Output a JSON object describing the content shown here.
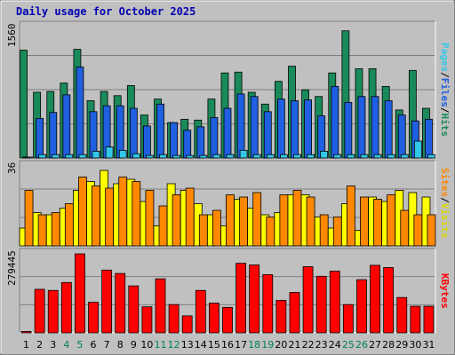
{
  "title": "Daily usage for October 2025",
  "chart_data": [
    {
      "type": "bar",
      "panel": "pages-files-hits",
      "max_label": "1560",
      "ylim": [
        0,
        1560
      ],
      "categories": [
        "1",
        "2",
        "3",
        "4",
        "5",
        "6",
        "7",
        "8",
        "9",
        "10",
        "11",
        "12",
        "13",
        "14",
        "15",
        "16",
        "17",
        "18",
        "19",
        "20",
        "21",
        "22",
        "23",
        "24",
        "25",
        "26",
        "27",
        "28",
        "29",
        "30",
        "31"
      ],
      "weekend_days": [
        "4",
        "5",
        "11",
        "12",
        "18",
        "19",
        "25",
        "26"
      ],
      "axis_label_parts": [
        "Pages",
        "Files",
        "Hits"
      ],
      "series": [
        {
          "name": "Hits",
          "color": "#1a8a5a",
          "values": [
            1280,
            780,
            790,
            890,
            1290,
            680,
            790,
            740,
            860,
            510,
            700,
            420,
            460,
            450,
            700,
            1010,
            1020,
            780,
            640,
            910,
            1090,
            810,
            730,
            1010,
            1510,
            1060,
            1060,
            850,
            570,
            1040,
            590
          ]
        },
        {
          "name": "Files",
          "color": "#1f5fe0",
          "values": [
            0,
            470,
            540,
            750,
            1080,
            550,
            620,
            620,
            590,
            380,
            640,
            420,
            330,
            370,
            480,
            590,
            760,
            730,
            550,
            700,
            680,
            690,
            500,
            850,
            660,
            730,
            730,
            680,
            510,
            440,
            460
          ]
        },
        {
          "name": "Pages",
          "color": "#33c8e8",
          "values": [
            10,
            40,
            40,
            40,
            40,
            80,
            130,
            90,
            50,
            30,
            40,
            30,
            30,
            30,
            40,
            40,
            90,
            40,
            40,
            40,
            40,
            40,
            80,
            40,
            40,
            40,
            40,
            40,
            40,
            200,
            40
          ]
        }
      ]
    },
    {
      "type": "bar",
      "panel": "sites-visits",
      "max_label": "36",
      "ylim": [
        0,
        36
      ],
      "categories": [
        "1",
        "2",
        "3",
        "4",
        "5",
        "6",
        "7",
        "8",
        "9",
        "10",
        "11",
        "12",
        "13",
        "14",
        "15",
        "16",
        "17",
        "18",
        "19",
        "20",
        "21",
        "22",
        "23",
        "24",
        "25",
        "26",
        "27",
        "28",
        "29",
        "30",
        "31"
      ],
      "axis_label_parts": [
        "Sites",
        "Visits"
      ],
      "series": [
        {
          "name": "Visits",
          "color": "#ffff00",
          "values": [
            8,
            15,
            14,
            17,
            25,
            29,
            34,
            28,
            30,
            20,
            9,
            28,
            25,
            19,
            14,
            9,
            21,
            17,
            14,
            15,
            23,
            23,
            13,
            8,
            19,
            7,
            22,
            20,
            25,
            24,
            22
          ]
        },
        {
          "name": "Sites",
          "color": "#ff8800",
          "values": [
            25,
            14,
            15,
            19,
            31,
            27,
            26,
            31,
            29,
            25,
            18,
            23,
            26,
            14,
            16,
            23,
            22,
            24,
            13,
            23,
            25,
            22,
            14,
            13,
            27,
            22,
            21,
            23,
            16,
            14,
            14
          ]
        }
      ]
    },
    {
      "type": "bar",
      "panel": "kbytes",
      "max_label": "279445",
      "ylim": [
        0,
        279445
      ],
      "categories": [
        "1",
        "2",
        "3",
        "4",
        "5",
        "6",
        "7",
        "8",
        "9",
        "10",
        "11",
        "12",
        "13",
        "14",
        "15",
        "16",
        "17",
        "18",
        "19",
        "20",
        "21",
        "22",
        "23",
        "24",
        "25",
        "26",
        "27",
        "28",
        "29",
        "30",
        "31"
      ],
      "axis_label_parts": [
        "KBytes"
      ],
      "series": [
        {
          "name": "KBytes",
          "color": "#ff0000",
          "values": [
            5000,
            154000,
            150000,
            178000,
            279445,
            108000,
            222000,
            210000,
            166000,
            92000,
            191000,
            100000,
            60000,
            150000,
            105000,
            90000,
            246000,
            240000,
            206000,
            115000,
            143000,
            234000,
            200000,
            218000,
            100000,
            188000,
            239000,
            231000,
            125000,
            94000,
            94000
          ]
        }
      ]
    }
  ]
}
